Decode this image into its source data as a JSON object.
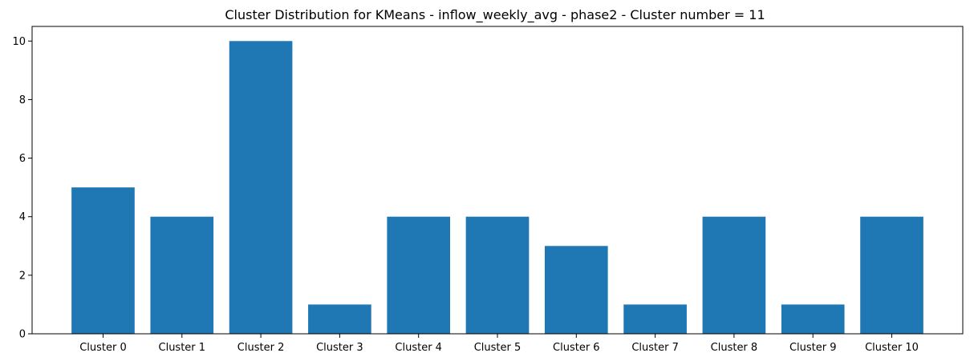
{
  "chart_data": {
    "type": "bar",
    "title": "Cluster Distribution for KMeans - inflow_weekly_avg - phase2 - Cluster number = 11",
    "xlabel": "",
    "ylabel": "",
    "categories": [
      "Cluster 0",
      "Cluster 1",
      "Cluster 2",
      "Cluster 3",
      "Cluster 4",
      "Cluster 5",
      "Cluster 6",
      "Cluster 7",
      "Cluster 8",
      "Cluster 9",
      "Cluster 10"
    ],
    "values": [
      5,
      4,
      10,
      1,
      4,
      4,
      3,
      1,
      4,
      1,
      4
    ],
    "ylim": [
      0,
      10.5
    ],
    "yticks": [
      "0",
      "2",
      "4",
      "6",
      "8",
      "10"
    ],
    "bar_color": "#1f77b4",
    "grid": false,
    "legend": "none"
  }
}
